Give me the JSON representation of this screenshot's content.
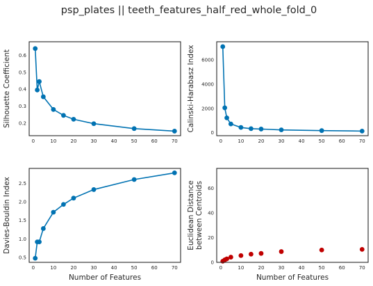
{
  "figure": {
    "suptitle": "psp_plates || teeth_features_half_red_whole_fold_0"
  },
  "chart_data": [
    {
      "type": "line",
      "ylabel": "Silhouette Coefficient",
      "xlabel": "",
      "x": [
        1,
        2,
        3,
        5,
        10,
        15,
        20,
        30,
        50,
        70
      ],
      "series": [
        {
          "values": [
            0.64,
            0.395,
            0.445,
            0.355,
            0.28,
            0.245,
            0.222,
            0.196,
            0.167,
            0.152
          ]
        }
      ],
      "xlim": [
        -2,
        73
      ],
      "ylim": [
        0.125,
        0.68
      ],
      "xticks": [
        "0",
        "10",
        "20",
        "30",
        "40",
        "50",
        "60",
        "70"
      ],
      "yticks": [
        "0.2",
        "0.3",
        "0.4",
        "0.5",
        "0.6"
      ],
      "color": "#0072b2"
    },
    {
      "type": "line",
      "ylabel": "Calinski-Harabasz Index",
      "xlabel": "",
      "x": [
        1,
        2,
        3,
        5,
        10,
        15,
        20,
        30,
        50,
        70
      ],
      "series": [
        {
          "values": [
            7100,
            2050,
            1220,
            720,
            430,
            330,
            300,
            230,
            170,
            130
          ]
        }
      ],
      "xlim": [
        -2,
        73
      ],
      "ylim": [
        -250,
        7500
      ],
      "xticks": [
        "0",
        "10",
        "20",
        "30",
        "40",
        "50",
        "60",
        "70"
      ],
      "yticks": [
        "0",
        "2000",
        "4000",
        "6000"
      ],
      "color": "#0072b2"
    },
    {
      "type": "line",
      "ylabel": "Davies-Bouldin Index",
      "xlabel": "Number of Features",
      "x": [
        1,
        2,
        3,
        5,
        10,
        15,
        20,
        30,
        50,
        70
      ],
      "series": [
        {
          "values": [
            0.48,
            0.92,
            0.92,
            1.28,
            1.72,
            1.93,
            2.1,
            2.33,
            2.6,
            2.78
          ]
        }
      ],
      "xlim": [
        -2,
        73
      ],
      "ylim": [
        0.37,
        2.9
      ],
      "xticks": [
        "0",
        "10",
        "20",
        "30",
        "40",
        "50",
        "60",
        "70"
      ],
      "yticks": [
        "0.5",
        "1.0",
        "1.5",
        "2.0",
        "2.5"
      ],
      "color": "#0072b2"
    },
    {
      "type": "scatter",
      "ylabel": "Euclidean Distance\nbetween Centroids",
      "xlabel": "Number of Features",
      "x": [
        1,
        2,
        3,
        5,
        10,
        15,
        20,
        30,
        50,
        70
      ],
      "series": [
        {
          "values": [
            0.9,
            2.0,
            2.8,
            4.2,
            5.5,
            6.6,
            7.2,
            8.7,
            10.0,
            10.5
          ]
        }
      ],
      "xlim": [
        -2,
        73
      ],
      "ylim": [
        0,
        76
      ],
      "xticks": [
        "0",
        "10",
        "20",
        "30",
        "40",
        "50",
        "60",
        "70"
      ],
      "yticks": [
        "0",
        "20",
        "40",
        "60"
      ],
      "color": "#c00000"
    }
  ]
}
